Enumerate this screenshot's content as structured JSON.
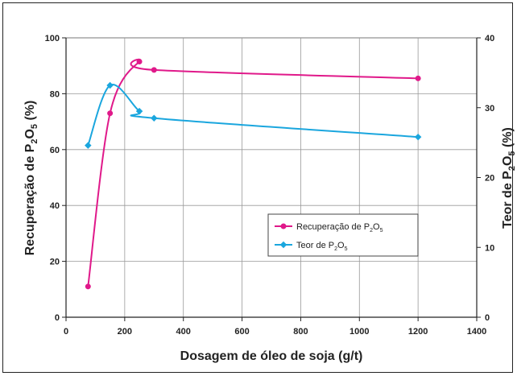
{
  "chart_data": {
    "type": "line",
    "xlabel": "Dosagem de óleo de soja (g/t)",
    "ylabel_left": "Recuperação de P2O5 (%)",
    "ylabel_right": "Teor de P2O5 (%)",
    "xlim": [
      0,
      1400
    ],
    "ylim_left": [
      0,
      100
    ],
    "ylim_right": [
      0,
      40
    ],
    "x_ticks": [
      "0",
      "200",
      "400",
      "600",
      "800",
      "1000",
      "1200",
      "1400"
    ],
    "y_left_ticks": [
      "0",
      "20",
      "40",
      "60",
      "80",
      "100"
    ],
    "y_right_ticks": [
      "0",
      "10",
      "20",
      "30",
      "40"
    ],
    "grid": true,
    "legend_placement": "center-right",
    "series": [
      {
        "name": "Recuperação de P2O5",
        "axis": "left",
        "color": "#e0198a",
        "marker": "circle",
        "x": [
          75,
          150,
          250,
          300,
          1200
        ],
        "y": [
          11,
          73,
          91.5,
          88.5,
          85.5
        ]
      },
      {
        "name": "Teor de P2O5",
        "axis": "right",
        "color": "#1aa6de",
        "marker": "diamond",
        "x": [
          75,
          150,
          250,
          300,
          1200
        ],
        "y": [
          24.6,
          33.2,
          29.5,
          28.5,
          25.8
        ]
      }
    ]
  }
}
